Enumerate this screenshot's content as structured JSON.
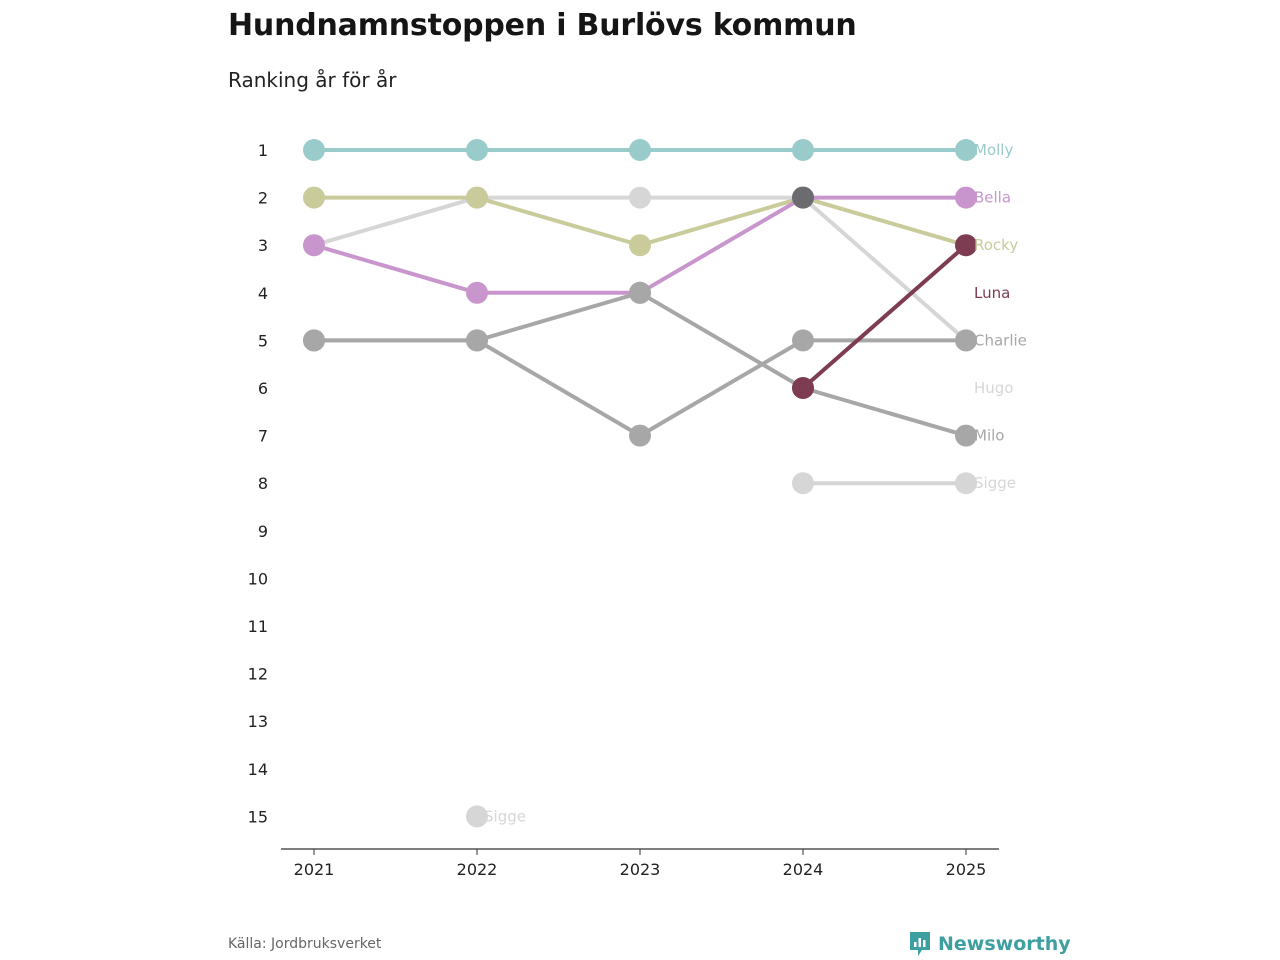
{
  "title": "Hundnamnstoppen i Burlövs kommun",
  "subtitle": "Ranking år för år",
  "source": "Källa: Jordbruksverket",
  "brand": "Newsworthy",
  "brand_color": "#3e9fa0",
  "brand_icon": "bar-chart-bubble-icon",
  "chart_data": {
    "type": "line",
    "x": [
      "2021",
      "2022",
      "2023",
      "2024",
      "2025"
    ],
    "yticks": [
      "1",
      "2",
      "3",
      "4",
      "5",
      "6",
      "7",
      "8",
      "9",
      "10",
      "11",
      "12",
      "13",
      "14",
      "15"
    ],
    "ylim": [
      1,
      15
    ],
    "y_reversed": true,
    "grid": false,
    "series": [
      {
        "name": "Molly",
        "color": "#99cbcb",
        "values": [
          1,
          1,
          1,
          1,
          1
        ]
      },
      {
        "name": "Hugo",
        "color": "#d6d6d6",
        "values": [
          3,
          2,
          2,
          2,
          5
        ]
      },
      {
        "name": "Rocky",
        "color": "#c9cb9b",
        "values": [
          2,
          2,
          3,
          2,
          3
        ]
      },
      {
        "name": "Bella",
        "color": "#c896cc",
        "values": [
          3,
          4,
          4,
          2,
          2
        ]
      },
      {
        "name": "Charlie",
        "color": "#a7a7a7",
        "values": [
          5,
          5,
          7,
          5,
          5
        ]
      },
      {
        "name": "Milo",
        "color": "#a7a7a7",
        "values": [
          5,
          5,
          4,
          6,
          7
        ]
      },
      {
        "name": "Sigge",
        "color": "#d6d6d6",
        "values": [
          null,
          15,
          null,
          8,
          8
        ]
      },
      {
        "name": "Luna",
        "color": "#7d3c52",
        "values": [
          null,
          null,
          null,
          6,
          3
        ]
      }
    ],
    "highlight_dots": [
      {
        "x": "2024",
        "y": 2,
        "color": "#6c6c70"
      }
    ],
    "end_labels": [
      {
        "text": "Molly",
        "y": 1,
        "color": "#99cbcb"
      },
      {
        "text": "Bella",
        "y": 2,
        "color": "#c896cc"
      },
      {
        "text": "Rocky",
        "y": 3,
        "color": "#c9cb9b"
      },
      {
        "text": "Luna",
        "y": 4,
        "color": "#7d3c52"
      },
      {
        "text": "Charlie",
        "y": 5,
        "color": "#a7a7a7"
      },
      {
        "text": "Hugo",
        "y": 6,
        "color": "#d6d6d6"
      },
      {
        "text": "Milo",
        "y": 7,
        "color": "#a7a7a7"
      },
      {
        "text": "Sigge",
        "y": 8,
        "color": "#d6d6d6"
      }
    ],
    "inline_labels": [
      {
        "text": "Sigge",
        "x": "2022",
        "y": 15,
        "color": "#d6d6d6"
      }
    ]
  }
}
